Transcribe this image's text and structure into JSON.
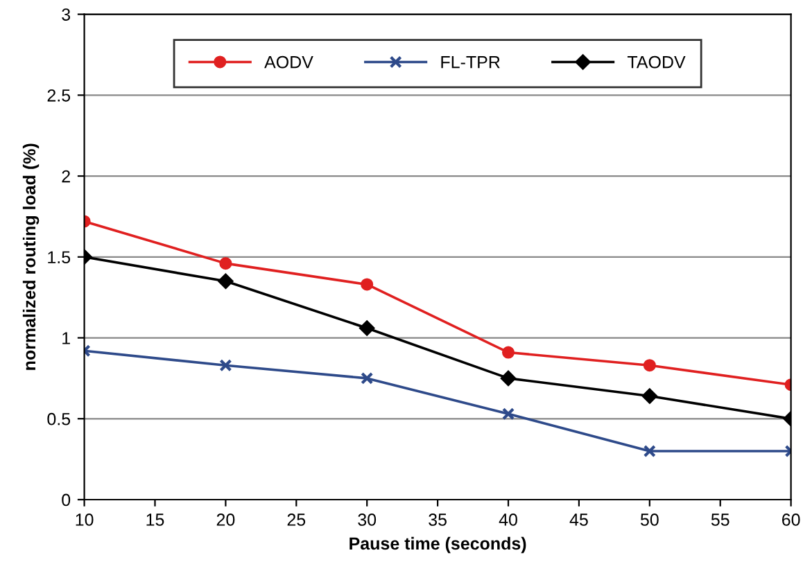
{
  "chart_data": {
    "type": "line",
    "xlabel": "Pause time (seconds)",
    "ylabel": "normalized routing load (%)",
    "x": [
      10,
      20,
      30,
      40,
      50,
      60
    ],
    "series": [
      {
        "name": "AODV",
        "color": "#e02020",
        "values": [
          1.72,
          1.46,
          1.33,
          0.91,
          0.83,
          0.71
        ],
        "marker": "circle"
      },
      {
        "name": "FL-TPR",
        "color": "#2e4a8a",
        "values": [
          0.92,
          0.83,
          0.75,
          0.53,
          0.3,
          0.3
        ],
        "marker": "cross"
      },
      {
        "name": "TAODV",
        "color": "#000000",
        "values": [
          1.5,
          1.35,
          1.06,
          0.75,
          0.64,
          0.5
        ],
        "marker": "diamond"
      }
    ],
    "xlim": [
      10,
      60
    ],
    "xticks": [
      10,
      15,
      20,
      25,
      30,
      35,
      40,
      45,
      50,
      55,
      60
    ],
    "ylim": [
      0,
      3
    ],
    "yticks": [
      0,
      0.5,
      1,
      1.5,
      2,
      2.5,
      3
    ],
    "grid": "y",
    "legend": "top",
    "line_style": "solid"
  }
}
